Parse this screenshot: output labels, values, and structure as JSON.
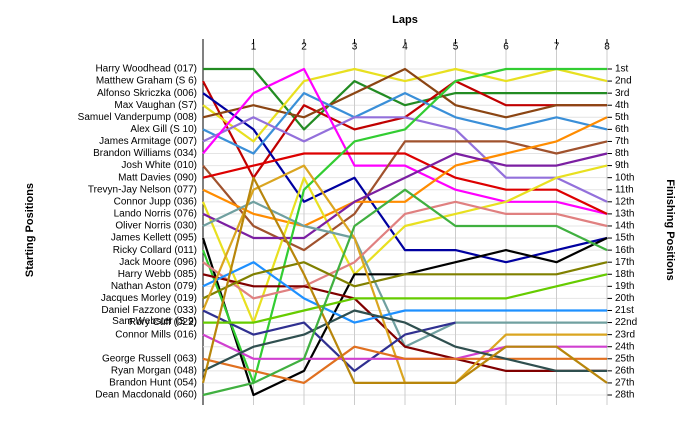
{
  "chart_data": {
    "type": "line",
    "xlabel": "Laps",
    "ylabel": "Starting Positions",
    "y2label": "Finishing Positions",
    "x": [
      0,
      1,
      2,
      3,
      4,
      5,
      6,
      7,
      8
    ],
    "xlim": [
      0,
      8
    ],
    "xticks": [
      1,
      2,
      3,
      4,
      5,
      6,
      7,
      8
    ],
    "ylim": [
      1,
      28
    ],
    "inverted": true,
    "grid": true,
    "y2ticks": [
      {
        "value": 1,
        "label": "1st"
      },
      {
        "value": 2,
        "label": "2nd"
      },
      {
        "value": 3,
        "label": "3rd"
      },
      {
        "value": 4,
        "label": "4th"
      },
      {
        "value": 5,
        "label": "5th"
      },
      {
        "value": 6,
        "label": "6th"
      },
      {
        "value": 7,
        "label": "7th"
      },
      {
        "value": 8,
        "label": "8th"
      },
      {
        "value": 9,
        "label": "9th"
      },
      {
        "value": 10,
        "label": "10th"
      },
      {
        "value": 11,
        "label": "11th"
      },
      {
        "value": 12,
        "label": "12th"
      },
      {
        "value": 13,
        "label": "13th"
      },
      {
        "value": 14,
        "label": "14th"
      },
      {
        "value": 15,
        "label": "15th"
      },
      {
        "value": 16,
        "label": "16th"
      },
      {
        "value": 17,
        "label": "17th"
      },
      {
        "value": 18,
        "label": "18th"
      },
      {
        "value": 19,
        "label": "19th"
      },
      {
        "value": 20,
        "label": "20th"
      },
      {
        "value": 21,
        "label": "21st"
      },
      {
        "value": 22,
        "label": "22nd"
      },
      {
        "value": 23,
        "label": "23rd"
      },
      {
        "value": 24,
        "label": "24th"
      },
      {
        "value": 25,
        "label": "25th"
      },
      {
        "value": 26,
        "label": "26th"
      },
      {
        "value": 27,
        "label": "27th"
      },
      {
        "value": 28,
        "label": "28th"
      }
    ],
    "series": [
      {
        "name": "Harry Woodhead (017)",
        "color": "#228b22",
        "values": [
          1,
          1,
          6,
          2,
          4,
          3,
          3,
          3,
          3
        ]
      },
      {
        "name": "Matthew Graham (S 6)",
        "color": "#c00000",
        "values": [
          2,
          10,
          4,
          6,
          5,
          2,
          4,
          4,
          4
        ]
      },
      {
        "name": "Alfonso Skriczka (006)",
        "color": "#0000a0",
        "values": [
          3,
          6,
          12,
          10,
          16,
          16,
          17,
          16,
          15
        ]
      },
      {
        "name": "Max Vaughan (S7)",
        "color": "#e8e020",
        "values": [
          4,
          7,
          2,
          1,
          2,
          1,
          2,
          1,
          2
        ]
      },
      {
        "name": "Samuel Vanderpump (008)",
        "color": "#8b4513",
        "values": [
          5,
          4,
          5,
          3,
          1,
          4,
          5,
          4,
          4
        ]
      },
      {
        "name": "Alex Gill (S 10)",
        "color": "#3a8fd8",
        "values": [
          6,
          8,
          3,
          5,
          3,
          5,
          6,
          5,
          6
        ]
      },
      {
        "name": "James Armitage (007)",
        "color": "#9370db",
        "values": [
          7,
          5,
          7,
          5,
          5,
          6,
          10,
          10,
          12
        ]
      },
      {
        "name": "Brandon Williams (034)",
        "color": "#ff00ff",
        "values": [
          8,
          3,
          1,
          9,
          9,
          11,
          12,
          12,
          13
        ]
      },
      {
        "name": "Josh White (010)",
        "color": "#a0522d",
        "values": [
          9,
          14,
          16,
          13,
          7,
          7,
          7,
          8,
          7
        ]
      },
      {
        "name": "Matt Davies (090)",
        "color": "#dd0000",
        "values": [
          10,
          9,
          8,
          8,
          8,
          10,
          11,
          11,
          13
        ]
      },
      {
        "name": "Trevyn-Jay Nelson (077)",
        "color": "#ff8c00",
        "values": [
          11,
          13,
          14,
          12,
          12,
          9,
          8,
          7,
          5
        ]
      },
      {
        "name": "Connor Jupp (036)",
        "color": "#e8e020",
        "values": [
          12,
          22,
          10,
          18,
          14,
          13,
          12,
          10,
          9
        ]
      },
      {
        "name": "Lando Norris (076)",
        "color": "#7b1fa2",
        "values": [
          13,
          15,
          15,
          12,
          10,
          8,
          9,
          9,
          8
        ]
      },
      {
        "name": "Oliver Norris (030)",
        "color": "#70a0a0",
        "values": [
          14,
          12,
          14,
          15,
          24,
          22,
          22,
          22,
          22
        ]
      },
      {
        "name": "James Kellett (095)",
        "color": "#000000",
        "values": [
          15,
          28,
          26,
          18,
          18,
          17,
          16,
          17,
          15
        ]
      },
      {
        "name": "Ricky Collard (011)",
        "color": "#32cd32",
        "values": [
          16,
          27,
          11,
          7,
          6,
          2,
          1,
          1,
          1
        ]
      },
      {
        "name": "Jack Moore (096)",
        "color": "#e08080",
        "values": [
          17,
          20,
          19,
          17,
          13,
          12,
          13,
          13,
          14
        ]
      },
      {
        "name": "Harry Webb (085)",
        "color": "#800000",
        "values": [
          18,
          19,
          19,
          20,
          24,
          25,
          26,
          26,
          26
        ]
      },
      {
        "name": "Nathan Aston (079)",
        "color": "#1e90ff",
        "values": [
          19,
          17,
          20,
          22,
          21,
          21,
          21,
          21,
          21
        ]
      },
      {
        "name": "Jacques Morley (019)",
        "color": "#808000",
        "values": [
          20,
          18,
          17,
          19,
          18,
          18,
          18,
          18,
          17
        ]
      },
      {
        "name": "Daniel Fazzone (033)",
        "color": "#daa520",
        "values": [
          21,
          11,
          9,
          15,
          27,
          27,
          23,
          23,
          23
        ]
      },
      {
        "name": "Sam Webster (S 9)",
        "color": "#303090",
        "values": [
          21,
          23,
          22,
          26,
          23,
          22,
          null,
          null,
          null
        ]
      },
      {
        "name": "Rory Cuff (022)",
        "color": "#66cc00",
        "values": [
          22,
          22,
          21,
          20,
          20,
          20,
          20,
          19,
          18
        ]
      },
      {
        "name": "Connor Mills (016)",
        "color": "#d040d0",
        "values": [
          23,
          25,
          25,
          25,
          25,
          25,
          24,
          24,
          24
        ]
      },
      {
        "name": "George Russell (063)",
        "color": "#e07020",
        "values": [
          25,
          26,
          27,
          24,
          25,
          25,
          25,
          25,
          25
        ]
      },
      {
        "name": "Ryan Morgan (048)",
        "color": "#2f4f4f",
        "values": [
          26,
          24,
          23,
          21,
          22,
          24,
          25,
          26,
          26
        ]
      },
      {
        "name": "Brandon Hunt (054)",
        "color": "#b8860b",
        "values": [
          27,
          10,
          18,
          27,
          27,
          27,
          24,
          24,
          27
        ]
      },
      {
        "name": "Dean Macdonald (060)",
        "color": "#40b040",
        "values": [
          28,
          27,
          25,
          14,
          11,
          14,
          14,
          14,
          16
        ]
      }
    ]
  }
}
